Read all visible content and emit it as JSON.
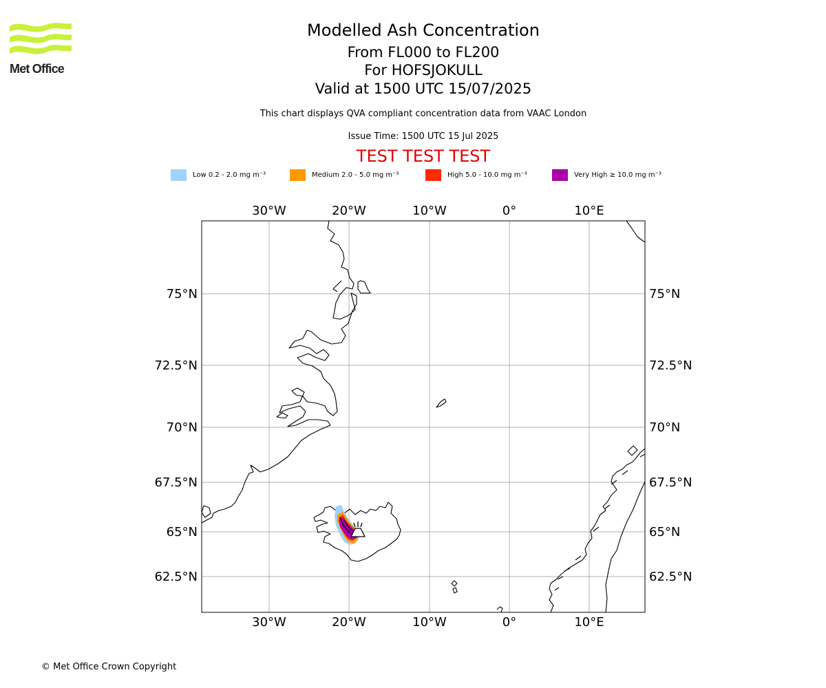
{
  "header": {
    "logo_text": "Met Office",
    "title": "Modelled Ash Concentration",
    "levels": "From FL000 to FL200",
    "volcano": "For HOFSJOKULL",
    "valid": "Valid at 1500 UTC 15/07/2025",
    "subtitle": "This chart displays QVA compliant concentration data from VAAC London",
    "issue_time": "Issue Time: 1500 UTC 15 Jul 2025",
    "test_banner": "TEST TEST TEST"
  },
  "legend": [
    {
      "label": "Low 0.2 - 2.0 mg m⁻³",
      "color": "#a0d2ff"
    },
    {
      "label": "Medium 2.0 - 5.0 mg m⁻³",
      "color": "#ff9900"
    },
    {
      "label": "High 5.0 - 10.0 mg m⁻³",
      "color": "#ff2a00"
    },
    {
      "label": "Very High ≥ 10.0 mg m⁻³",
      "color": "#aa00aa"
    }
  ],
  "map": {
    "lon_ticks": [
      "30°W",
      "20°W",
      "10°W",
      "0°",
      "10°E"
    ],
    "lat_ticks": [
      "75°N",
      "72.5°N",
      "70°N",
      "67.5°N",
      "65°N",
      "62.5°N"
    ],
    "grid": true,
    "volcano_symbol": "volcano-icon"
  },
  "footer": {
    "copyright": "© Met Office Crown Copyright"
  }
}
